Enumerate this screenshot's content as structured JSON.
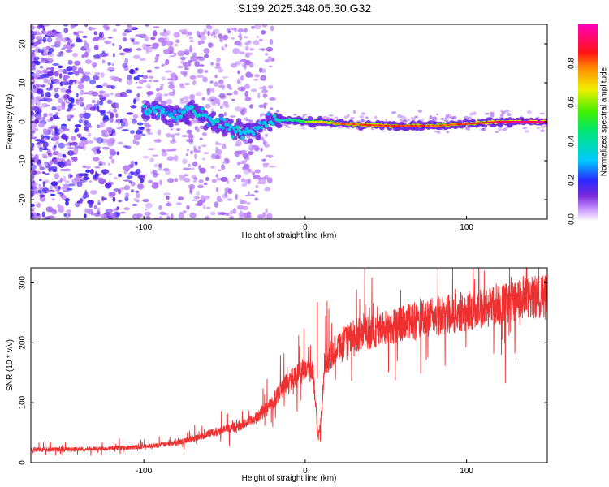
{
  "title": "S199.2025.348.05.30.G32",
  "chart_data": [
    {
      "type": "heatmap",
      "xlabel": "Height of straight line (km)",
      "ylabel": "Frequency (Hz)",
      "xlim": [
        -170,
        150
      ],
      "ylim": [
        -25,
        25
      ],
      "xticks": [
        -100,
        0,
        100
      ],
      "yticks": [
        20,
        10,
        0,
        -10,
        -20
      ],
      "colorbar": {
        "label": "Normalized spectral amplitude",
        "range": [
          0.0,
          1.0
        ],
        "ticks": [
          "0.0",
          "0.2",
          "0.4",
          "0.6",
          "0.8"
        ],
        "tick_values": [
          0.0,
          0.2,
          0.4,
          0.6,
          0.8
        ]
      },
      "ridge": [
        {
          "x": -100,
          "y": 2.0,
          "amp": 0.25
        },
        {
          "x": -90,
          "y": 3.0,
          "amp": 0.2
        },
        {
          "x": -80,
          "y": 1.0,
          "amp": 0.22
        },
        {
          "x": -70,
          "y": 3.5,
          "amp": 0.28
        },
        {
          "x": -60,
          "y": 0.5,
          "amp": 0.22
        },
        {
          "x": -50,
          "y": -1.0,
          "amp": 0.25
        },
        {
          "x": -40,
          "y": -2.5,
          "amp": 0.3
        },
        {
          "x": -30,
          "y": -1.5,
          "amp": 0.25
        },
        {
          "x": -20,
          "y": 0.5,
          "amp": 0.3
        },
        {
          "x": -10,
          "y": 0.5,
          "amp": 0.45
        },
        {
          "x": 0,
          "y": 0.0,
          "amp": 0.6
        },
        {
          "x": 10,
          "y": 0.0,
          "amp": 0.7
        },
        {
          "x": 20,
          "y": -0.5,
          "amp": 0.8
        },
        {
          "x": 50,
          "y": -1.0,
          "amp": 0.85
        },
        {
          "x": 80,
          "y": -1.0,
          "amp": 0.8
        },
        {
          "x": 100,
          "y": -0.5,
          "amp": 0.85
        },
        {
          "x": 120,
          "y": 0.0,
          "amp": 0.9
        },
        {
          "x": 150,
          "y": 0.0,
          "amp": 0.95
        }
      ]
    },
    {
      "type": "line",
      "xlabel": "Height of straight line (km)",
      "ylabel": "SNR (10 * v/v)",
      "xlim": [
        -170,
        150
      ],
      "ylim": [
        0,
        325
      ],
      "xticks": [
        -100,
        0,
        100
      ],
      "yticks": [
        0,
        100,
        200,
        300
      ],
      "color": "#ee3030",
      "trend": [
        {
          "x": -170,
          "y": 22
        },
        {
          "x": -150,
          "y": 22
        },
        {
          "x": -130,
          "y": 23
        },
        {
          "x": -110,
          "y": 25
        },
        {
          "x": -95,
          "y": 28
        },
        {
          "x": -80,
          "y": 33
        },
        {
          "x": -70,
          "y": 40
        },
        {
          "x": -60,
          "y": 48
        },
        {
          "x": -50,
          "y": 55
        },
        {
          "x": -40,
          "y": 62
        },
        {
          "x": -30,
          "y": 75
        },
        {
          "x": -20,
          "y": 100
        },
        {
          "x": -15,
          "y": 125
        },
        {
          "x": -10,
          "y": 135
        },
        {
          "x": -5,
          "y": 145
        },
        {
          "x": 0,
          "y": 160
        },
        {
          "x": 5,
          "y": 150
        },
        {
          "x": 8,
          "y": 40
        },
        {
          "x": 10,
          "y": 75
        },
        {
          "x": 12,
          "y": 165
        },
        {
          "x": 20,
          "y": 195
        },
        {
          "x": 30,
          "y": 210
        },
        {
          "x": 50,
          "y": 225
        },
        {
          "x": 70,
          "y": 238
        },
        {
          "x": 90,
          "y": 248
        },
        {
          "x": 110,
          "y": 258
        },
        {
          "x": 130,
          "y": 268
        },
        {
          "x": 150,
          "y": 280
        }
      ],
      "spike": {
        "x": 7.5,
        "y": 268
      }
    }
  ]
}
